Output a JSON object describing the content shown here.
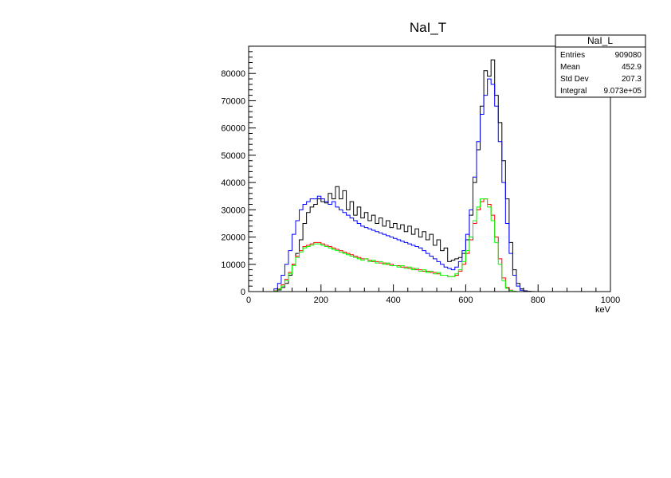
{
  "chart_data": {
    "type": "line",
    "title": "NaI_T",
    "xlabel": "keV",
    "ylabel": "",
    "xlim": [
      0,
      1000
    ],
    "ylim": [
      0,
      90000
    ],
    "x_ticks": [
      "0",
      "200",
      "400",
      "600",
      "800",
      "1000"
    ],
    "y_ticks": [
      "0",
      "10000",
      "20000",
      "30000",
      "40000",
      "50000",
      "60000",
      "70000",
      "80000"
    ],
    "bin_width": 10,
    "x": [
      0,
      10,
      20,
      30,
      40,
      50,
      60,
      70,
      80,
      90,
      100,
      110,
      120,
      130,
      140,
      150,
      160,
      170,
      180,
      190,
      200,
      210,
      220,
      230,
      240,
      250,
      260,
      270,
      280,
      290,
      300,
      310,
      320,
      330,
      340,
      350,
      360,
      370,
      380,
      390,
      400,
      410,
      420,
      430,
      440,
      450,
      460,
      470,
      480,
      490,
      500,
      510,
      520,
      530,
      540,
      550,
      560,
      570,
      580,
      590,
      600,
      610,
      620,
      630,
      640,
      650,
      660,
      670,
      680,
      690,
      700,
      710,
      720,
      730,
      740,
      750,
      760,
      770,
      780,
      790,
      800,
      810,
      820,
      830,
      840,
      850,
      860,
      870,
      880,
      890,
      900,
      910,
      920,
      930,
      940,
      950,
      960,
      970,
      980,
      990
    ],
    "series": [
      {
        "color": "#000000",
        "values": [
          0,
          0,
          0,
          0,
          0,
          0,
          0,
          200,
          600,
          1500,
          3000,
          6000,
          10000,
          14000,
          19000,
          25000,
          29000,
          31000,
          32000,
          34000,
          33000,
          32500,
          36000,
          34000,
          38500,
          34000,
          37000,
          30000,
          33000,
          28000,
          31000,
          27000,
          29000,
          26000,
          28000,
          25000,
          27000,
          24000,
          26000,
          23500,
          25000,
          23000,
          24500,
          22000,
          24000,
          21000,
          23000,
          20000,
          22000,
          19000,
          21000,
          17000,
          19000,
          15000,
          16000,
          11000,
          11500,
          12000,
          12500,
          14000,
          19000,
          28000,
          40000,
          52000,
          68000,
          81000,
          79000,
          85000,
          72000,
          62000,
          48000,
          34000,
          18000,
          8000,
          3000,
          1000,
          300,
          100,
          50,
          0,
          0,
          0,
          0,
          0,
          0,
          0,
          0,
          0,
          0,
          0,
          0,
          0,
          0,
          0,
          0,
          0,
          0,
          0,
          0,
          0
        ]
      },
      {
        "color": "#0000ff",
        "values": [
          0,
          0,
          0,
          0,
          0,
          0,
          0,
          1000,
          3000,
          6000,
          10000,
          15000,
          21000,
          26000,
          30000,
          32000,
          33000,
          34000,
          34000,
          35000,
          34000,
          33000,
          32000,
          33000,
          31000,
          30000,
          29000,
          28000,
          27000,
          26000,
          25000,
          24000,
          23500,
          23000,
          22500,
          22000,
          21500,
          21000,
          20500,
          20000,
          19500,
          19000,
          18500,
          18000,
          17500,
          17000,
          16500,
          16000,
          15000,
          14000,
          13000,
          12000,
          11000,
          10000,
          9000,
          8500,
          8000,
          9000,
          11000,
          15000,
          21000,
          30000,
          42000,
          55000,
          65000,
          72000,
          78000,
          76000,
          68000,
          55000,
          40000,
          25000,
          14000,
          6000,
          2000,
          500,
          100,
          0,
          0,
          0,
          0,
          0,
          0,
          0,
          0,
          0,
          0,
          0,
          0,
          0,
          0,
          0,
          0,
          0,
          0,
          0,
          0,
          0,
          0,
          0
        ]
      },
      {
        "color": "#ff0000",
        "values": [
          0,
          0,
          0,
          0,
          0,
          0,
          0,
          300,
          1000,
          2500,
          4500,
          7000,
          10000,
          13000,
          15000,
          16500,
          17000,
          17500,
          18000,
          18000,
          17500,
          17000,
          16500,
          16000,
          15500,
          15000,
          14500,
          14000,
          13500,
          13000,
          12500,
          12000,
          12000,
          11500,
          11000,
          11000,
          10500,
          10500,
          10000,
          10000,
          9500,
          9500,
          9000,
          9000,
          8500,
          8500,
          8000,
          8000,
          7500,
          7500,
          7000,
          7000,
          6500,
          6000,
          6000,
          5500,
          5500,
          6000,
          7500,
          10000,
          14000,
          19000,
          25000,
          30000,
          33000,
          34000,
          32000,
          28000,
          20000,
          12000,
          5000,
          1500,
          500,
          100,
          0,
          0,
          0,
          0,
          0,
          0,
          0,
          0,
          0,
          0,
          0,
          0,
          0,
          0,
          0,
          0,
          0,
          0,
          0,
          0,
          0,
          0,
          0,
          0,
          0,
          0
        ]
      },
      {
        "color": "#00ff00",
        "values": [
          0,
          0,
          0,
          0,
          0,
          0,
          0,
          200,
          800,
          2000,
          4000,
          6500,
          9500,
          12500,
          14500,
          16000,
          16500,
          17000,
          17500,
          17500,
          17000,
          16500,
          16000,
          15500,
          15000,
          14500,
          14000,
          13500,
          13000,
          12500,
          12000,
          11500,
          12000,
          11000,
          11500,
          10500,
          11000,
          10000,
          10500,
          9500,
          9500,
          9000,
          9500,
          8500,
          9000,
          8000,
          8500,
          7500,
          8000,
          7000,
          7500,
          6500,
          7000,
          6000,
          6000,
          5500,
          5500,
          6500,
          8000,
          11000,
          15000,
          20000,
          26000,
          31000,
          34000,
          34000,
          31000,
          26000,
          18000,
          10000,
          4000,
          1200,
          400,
          100,
          0,
          0,
          0,
          0,
          0,
          0,
          0,
          0,
          0,
          0,
          0,
          0,
          0,
          0,
          0,
          0,
          0,
          0,
          0,
          0,
          0,
          0,
          0,
          0,
          0,
          0
        ]
      }
    ],
    "stats": {
      "title": "NaI_L",
      "rows": [
        {
          "label": "Entries",
          "value": "909080"
        },
        {
          "label": "Mean",
          "value": "452.9"
        },
        {
          "label": "Std Dev",
          "value": "207.3"
        },
        {
          "label": "Integral",
          "value": "9.073e+05"
        }
      ]
    }
  }
}
